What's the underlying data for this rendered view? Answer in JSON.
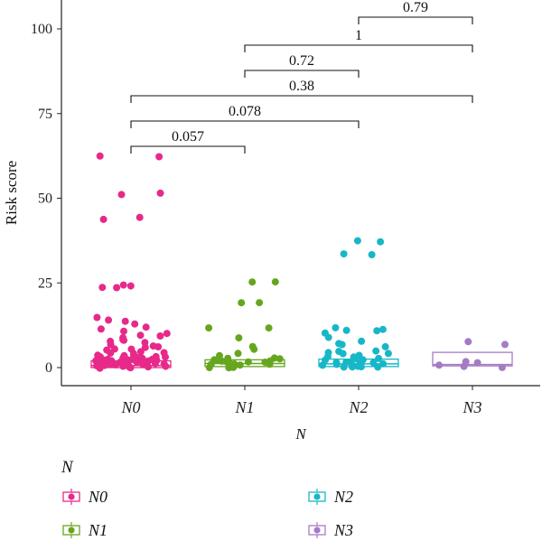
{
  "chart_data": {
    "type": "box-jitter",
    "ylabel": "Risk score",
    "xlabel": "N",
    "ylim": [
      0,
      108
    ],
    "yticks": [
      0,
      25,
      50,
      75,
      100
    ],
    "categories": [
      "N0",
      "N1",
      "N2",
      "N3"
    ],
    "colors": {
      "N0": "#e7298a",
      "N1": "#66a61e",
      "N2": "#17b7c7",
      "N3": "#a67bc5"
    },
    "boxes": [
      {
        "group": "N0",
        "q1": 0.0,
        "median": 0.6,
        "q3": 2.0
      },
      {
        "group": "N1",
        "q1": 0.3,
        "median": 1.2,
        "q3": 2.3
      },
      {
        "group": "N2",
        "q1": 0.3,
        "median": 1.1,
        "q3": 2.5
      },
      {
        "group": "N3",
        "q1": 0.5,
        "median": 0.9,
        "q3": 4.5
      }
    ],
    "points": {
      "N0": [
        62.5,
        62.4,
        51.3,
        51.1,
        44.2,
        44.0,
        24.2,
        24.0,
        23.8,
        23.5,
        15.0,
        14.2,
        13.5,
        12.8,
        12.0,
        11.2,
        10.5,
        10.0,
        9.6,
        9.2,
        8.8,
        8.4,
        8.0,
        7.6,
        7.2,
        6.9,
        6.6,
        6.3,
        6.0,
        5.7,
        5.4,
        5.1,
        4.8,
        4.5,
        4.3,
        4.1,
        3.9,
        3.7,
        3.5,
        3.3,
        3.1,
        2.9,
        2.8,
        2.7,
        2.6,
        2.5,
        2.4,
        2.3,
        2.2,
        2.1,
        2.0,
        1.9,
        1.8,
        1.7,
        1.6,
        1.5,
        1.4,
        1.3,
        1.2,
        1.1,
        1.0,
        0.9,
        0.8,
        0.7,
        0.6,
        0.5,
        0.4,
        0.3,
        0.2,
        0.1,
        0.0,
        3.0,
        2.2,
        1.6,
        1.1,
        0.7,
        0.4,
        0.2,
        1.9,
        2.6
      ],
      "N1": [
        25.3,
        25.2,
        19.3,
        19.1,
        11.8,
        11.6,
        9.0,
        6.0,
        5.2,
        3.5,
        3.0,
        2.8,
        2.5,
        2.2,
        2.0,
        1.8,
        1.6,
        1.4,
        1.2,
        1.0,
        0.8,
        0.6,
        0.4,
        0.2,
        0.1,
        4.2,
        1.7,
        0.9,
        0.3,
        2.4
      ],
      "N2": [
        37.4,
        37.3,
        33.4,
        33.3,
        11.8,
        11.5,
        11.2,
        10.8,
        10.0,
        9.0,
        8.0,
        7.0,
        6.6,
        6.2,
        5.0,
        4.8,
        4.5,
        4.2,
        4.0,
        3.6,
        3.2,
        2.8,
        2.5,
        2.2,
        2.0,
        1.8,
        1.6,
        1.4,
        1.2,
        1.0,
        0.8,
        0.6,
        0.4,
        0.2,
        0.1,
        0.0,
        3.0,
        1.5,
        0.7,
        0.3
      ],
      "N3": [
        7.4,
        6.8,
        2.0,
        1.2,
        0.6,
        0.4,
        0.2
      ]
    },
    "comparisons": [
      {
        "from": "N2",
        "to": "N3",
        "p": "0.79"
      },
      {
        "from": "N1",
        "to": "N3",
        "p": "1"
      },
      {
        "from": "N1",
        "to": "N2",
        "p": "0.72"
      },
      {
        "from": "N0",
        "to": "N3",
        "p": "0.38"
      },
      {
        "from": "N0",
        "to": "N2",
        "p": "0.078"
      },
      {
        "from": "N0",
        "to": "N1",
        "p": "0.057"
      }
    ],
    "legend": {
      "title": "N",
      "items": [
        "N0",
        "N1",
        "N2",
        "N3"
      ]
    }
  }
}
